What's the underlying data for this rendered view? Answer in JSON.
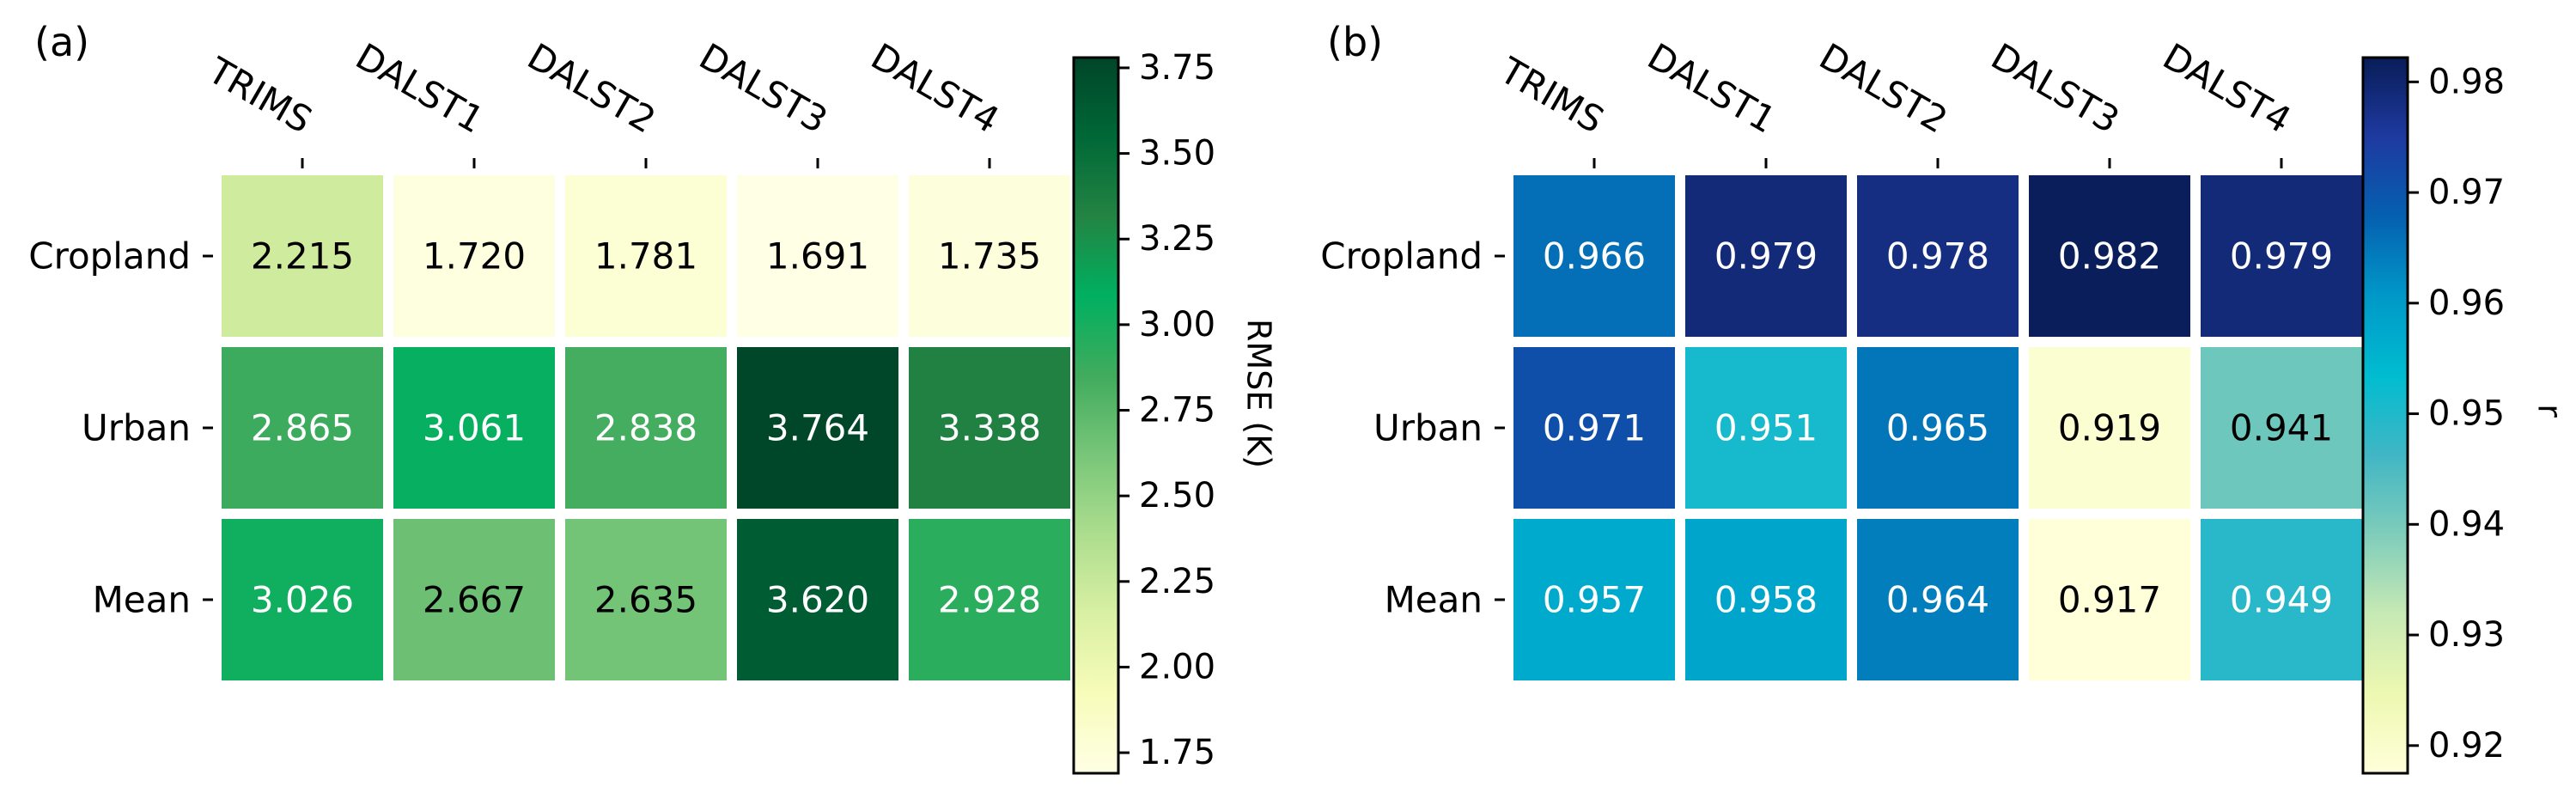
{
  "chart_data": [
    {
      "type": "heatmap",
      "panel_label": "(a)",
      "x_categories": [
        "TRIMS",
        "DALST1",
        "DALST2",
        "DALST3",
        "DALST4"
      ],
      "y_categories": [
        "Cropland",
        "Urban",
        "Mean"
      ],
      "values": [
        [
          2.215,
          1.72,
          1.781,
          1.691,
          1.735
        ],
        [
          2.865,
          3.061,
          2.838,
          3.764,
          3.338
        ],
        [
          3.026,
          2.667,
          2.635,
          3.62,
          2.928
        ]
      ],
      "value_labels": [
        [
          "2.215",
          "1.720",
          "1.781",
          "1.691",
          "1.735"
        ],
        [
          "2.865",
          "3.061",
          "2.838",
          "3.764",
          "3.338"
        ],
        [
          "3.026",
          "2.667",
          "2.635",
          "3.620",
          "2.928"
        ]
      ],
      "colormap": "Greens",
      "colormap_stops": [
        "#ffffe5",
        "#f7fcb9",
        "#d9f0a3",
        "#addd8e",
        "#78c679",
        "#41ab5d",
        "#00b060",
        "#238443",
        "#006837",
        "#004529"
      ],
      "vmin": 1.69,
      "vmax": 3.78,
      "colorbar_label": "RMSE (K)",
      "colorbar_ticks": [
        1.75,
        2.0,
        2.25,
        2.5,
        2.75,
        3.0,
        3.25,
        3.5,
        3.75
      ],
      "colorbar_tick_labels": [
        "1.75",
        "2.00",
        "2.25",
        "2.50",
        "2.75",
        "3.00",
        "3.25",
        "3.50",
        "3.75"
      ],
      "light_text_threshold": 2.8,
      "text_color_dark": "#000000",
      "text_color_light": "#ffffff"
    },
    {
      "type": "heatmap",
      "panel_label": "(b)",
      "x_categories": [
        "TRIMS",
        "DALST1",
        "DALST2",
        "DALST3",
        "DALST4"
      ],
      "y_categories": [
        "Cropland",
        "Urban",
        "Mean"
      ],
      "values": [
        [
          0.966,
          0.979,
          0.978,
          0.982,
          0.979
        ],
        [
          0.971,
          0.951,
          0.965,
          0.919,
          0.941
        ],
        [
          0.957,
          0.958,
          0.964,
          0.917,
          0.949
        ]
      ],
      "value_labels": [
        [
          "0.966",
          "0.979",
          "0.978",
          "0.982",
          "0.979"
        ],
        [
          "0.971",
          "0.951",
          "0.965",
          "0.919",
          "0.941"
        ],
        [
          "0.957",
          "0.958",
          "0.964",
          "0.917",
          "0.949"
        ]
      ],
      "colormap": "YlGnBu",
      "colormap_stops": [
        "#ffffd9",
        "#edf8b1",
        "#c7e9b4",
        "#7fcdbb",
        "#41b6c4",
        "#00bcd0",
        "#0098c8",
        "#0560b0",
        "#1e3aa0",
        "#081d58"
      ],
      "vmin": 0.9175,
      "vmax": 0.9822,
      "colorbar_label": "r",
      "colorbar_ticks": [
        0.92,
        0.93,
        0.94,
        0.95,
        0.96,
        0.97,
        0.98
      ],
      "colorbar_tick_labels": [
        "0.92",
        "0.93",
        "0.94",
        "0.95",
        "0.96",
        "0.97",
        "0.98"
      ],
      "light_text_threshold": 0.945,
      "text_color_dark": "#000000",
      "text_color_light": "#ffffff"
    }
  ]
}
